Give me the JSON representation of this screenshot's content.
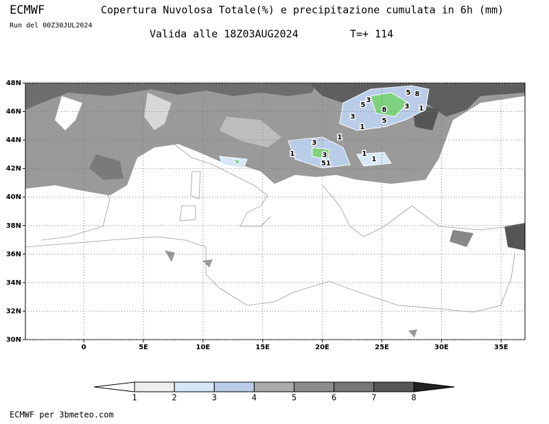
{
  "header": {
    "source": "ECMWF",
    "title": "Copertura Nuvolosa Totale(%) e precipitazione cumulata in 6h (mm)",
    "run": "Run del 00Z30JUL2024",
    "valid": "Valida alle 18Z03AUG2024",
    "lead": "T=+ 114"
  },
  "map": {
    "xlim": [
      -4.9,
      37
    ],
    "ylim": [
      30,
      48
    ],
    "xticks": [
      0,
      {
        "value": 5,
        "label": "5E"
      },
      {
        "value": 10,
        "label": "10E"
      },
      {
        "value": 15,
        "label": "15E"
      },
      {
        "value": 20,
        "label": "20E"
      },
      {
        "value": 25,
        "label": "25E"
      },
      {
        "value": 30,
        "label": "30E"
      },
      {
        "value": 35,
        "label": "35E"
      }
    ],
    "yticks": [
      {
        "value": 30,
        "label": "30N"
      },
      {
        "value": 32,
        "label": "32N"
      },
      {
        "value": 34,
        "label": "34N"
      },
      {
        "value": 36,
        "label": "36N"
      },
      {
        "value": 38,
        "label": "38N"
      },
      {
        "value": 40,
        "label": "40N"
      },
      {
        "value": 42,
        "label": "42N"
      },
      {
        "value": 44,
        "label": "44N"
      },
      {
        "value": 46,
        "label": "46N"
      },
      {
        "value": 48,
        "label": "48N"
      }
    ],
    "grid": true,
    "contour_labels": [
      3,
      5,
      8,
      5,
      8,
      3,
      1,
      3,
      5,
      1,
      1,
      3,
      1,
      3,
      51,
      1,
      1
    ]
  },
  "colorbar": {
    "levels": [
      1,
      2,
      3,
      4,
      5,
      6,
      7,
      8
    ],
    "colors": [
      "#ffffff",
      "#eeeeee",
      "#d6e8f8",
      "#b9cce8",
      "#aaaaaa",
      "#8d8d8d",
      "#777777",
      "#565656",
      "#222222"
    ]
  },
  "footer": "ECMWF per 3bmeteo.com"
}
